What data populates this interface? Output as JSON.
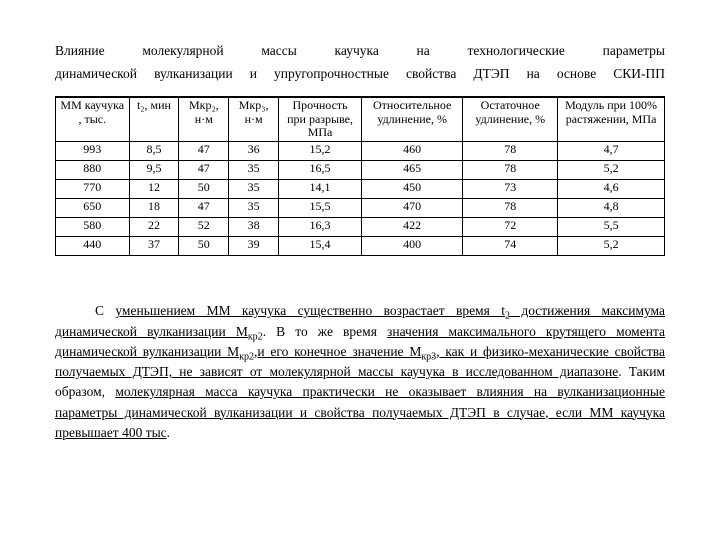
{
  "title": {
    "line1": "Влияние   молекулярной   массы   каучука   на   технологические   параметры",
    "line2": "динамической вулканизации и упругопрочностные свойства ДТЭП на основе СКИ-ПП"
  },
  "table": {
    "headers": [
      "ММ каучука , тыс.",
      "t₂, мин",
      "Mкр₂, н·м",
      "Mкр₃, н·м",
      "Прочность при разрыве, МПа",
      "Относительное удлинение, %",
      "Остаточное удлинение, %",
      "Модуль при 100% растяжении, МПа"
    ],
    "rows": [
      [
        "993",
        "8,5",
        "47",
        "36",
        "15,2",
        "460",
        "78",
        "4,7"
      ],
      [
        "880",
        "9,5",
        "47",
        "35",
        "16,5",
        "465",
        "78",
        "5,2"
      ],
      [
        "770",
        "12",
        "50",
        "35",
        "14,1",
        "450",
        "73",
        "4,6"
      ],
      [
        "650",
        "18",
        "47",
        "35",
        "15,5",
        "470",
        "78",
        "4,8"
      ],
      [
        "580",
        "22",
        "52",
        "38",
        "16,3",
        "422",
        "72",
        "5,5"
      ],
      [
        "440",
        "37",
        "50",
        "39",
        "15,4",
        "400",
        "74",
        "5,2"
      ]
    ],
    "col_widths": [
      "62",
      "42",
      "42",
      "42",
      "70",
      "78",
      "80",
      "90"
    ]
  },
  "paragraph": {
    "p0": "С ",
    "u1": "уменьшением ММ каучука существенно возрастает время t",
    "u1sub": "2",
    "u1b": " достижения максимума динамической вулканизации М",
    "u1bsub": "кр2",
    "p1": ". В то же время ",
    "u2": "значения максимального крутящего момента динамической вулканизации М",
    "u2sub": "кр2",
    "u2b": ",и его конечное значение М",
    "u2bsub": "кр3",
    "u2c": ", как и физико-механические свойства получаемых ДТЭП, не зависят от молекулярной массы каучука в исследованном диапазоне",
    "p2": ". Таким образом, ",
    "u3": "молекулярная масса каучука практически не оказывает влияния на вулканизационные параметры динамической вулканизации и свойства получаемых ДТЭП в случае, если ММ каучука превышает 400 тыс",
    "p3": "."
  }
}
